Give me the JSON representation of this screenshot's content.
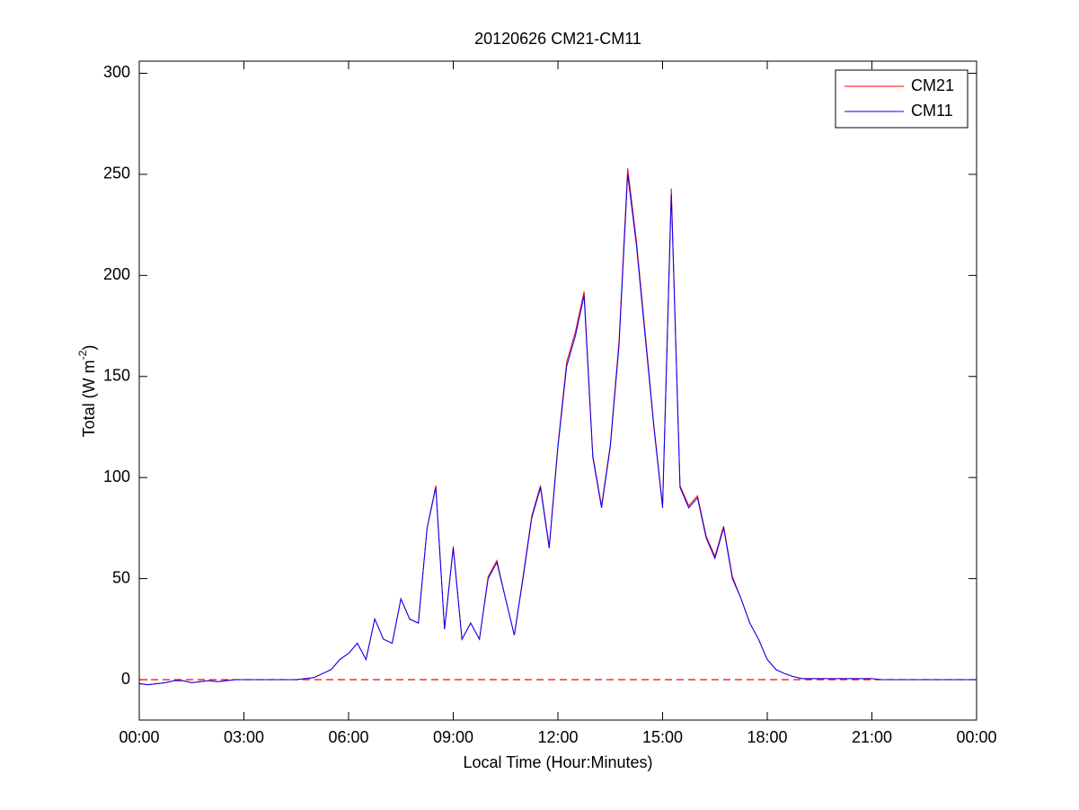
{
  "chart_data": {
    "type": "line",
    "title": "20120626 CM21-CM11",
    "xlabel": "Local Time (Hour:Minutes)",
    "ylabel": {
      "text": "Total (W m",
      "superscript": "-2",
      "suffix": ")"
    },
    "x": [
      0,
      0.25,
      0.5,
      0.75,
      1,
      1.25,
      1.5,
      1.75,
      2,
      2.25,
      2.5,
      2.75,
      3,
      3.25,
      3.5,
      3.75,
      4,
      4.25,
      4.5,
      4.75,
      5,
      5.25,
      5.5,
      5.75,
      6,
      6.25,
      6.5,
      6.75,
      7,
      7.25,
      7.5,
      7.75,
      8,
      8.25,
      8.5,
      8.75,
      9,
      9.25,
      9.5,
      9.75,
      10,
      10.25,
      10.5,
      10.75,
      11,
      11.25,
      11.5,
      11.75,
      12,
      12.25,
      12.5,
      12.75,
      13,
      13.25,
      13.5,
      13.75,
      14,
      14.25,
      14.5,
      14.75,
      15,
      15.25,
      15.5,
      15.75,
      16,
      16.25,
      16.5,
      16.75,
      17,
      17.25,
      17.5,
      17.75,
      18,
      18.25,
      18.5,
      18.75,
      19,
      19.25,
      19.5,
      19.75,
      20,
      20.25,
      20.5,
      20.75,
      21,
      21.25,
      21.5,
      21.75,
      22,
      22.25,
      22.5,
      22.75,
      23,
      23.25,
      23.5,
      23.75,
      24
    ],
    "series": [
      {
        "name": "CM21",
        "color": "#ff0000",
        "values": [
          -2,
          -2.5,
          -2,
          -1.5,
          -0.5,
          -0.5,
          -1.5,
          -1,
          -0.5,
          -1,
          -0.5,
          0,
          0,
          0,
          0,
          0,
          0,
          0,
          0,
          0.5,
          1,
          3,
          5,
          10,
          13,
          18,
          10,
          30,
          20,
          18,
          40,
          30,
          28,
          75,
          96,
          25,
          66,
          20,
          28,
          20,
          51,
          59,
          40,
          22,
          51,
          81,
          96,
          66,
          116,
          157,
          172,
          192,
          111,
          86,
          116,
          167,
          253,
          217,
          172,
          126,
          86,
          243,
          96,
          86,
          91,
          71,
          61,
          76,
          51,
          40,
          28,
          20,
          10,
          5,
          3,
          1.5,
          0.5,
          0.5,
          0.5,
          0.5,
          0.5,
          0.5,
          0.5,
          0.5,
          0.5,
          0,
          0,
          0,
          0,
          0,
          0,
          0,
          0,
          0,
          0,
          0,
          0
        ]
      },
      {
        "name": "CM11",
        "color": "#0000ff",
        "values": [
          -2,
          -2.5,
          -2,
          -1.5,
          -0.5,
          -0.5,
          -1.5,
          -1,
          -0.5,
          -1,
          -0.5,
          0,
          0,
          0,
          0,
          0,
          0,
          0,
          0,
          0.5,
          1,
          3,
          5,
          10,
          13,
          18,
          10,
          30,
          20,
          18,
          40,
          30,
          28,
          75,
          95,
          25,
          65,
          20,
          28,
          20,
          50,
          58,
          40,
          22,
          50,
          80,
          95,
          65,
          115,
          155,
          170,
          190,
          110,
          85,
          115,
          165,
          250,
          215,
          170,
          125,
          85,
          240,
          95,
          85,
          90,
          70,
          60,
          75,
          50,
          40,
          28,
          20,
          10,
          5,
          3,
          1.5,
          0.5,
          0.5,
          0.5,
          0.5,
          0.5,
          0.5,
          0.5,
          0.5,
          0.5,
          0,
          0,
          0,
          0,
          0,
          0,
          0,
          0,
          0,
          0,
          0,
          0
        ]
      }
    ],
    "reference_line": {
      "value": 0,
      "color": "#ff0000",
      "style": "dashed"
    },
    "xlim": [
      0,
      24
    ],
    "xticks": [
      {
        "value": 0,
        "label": "00:00"
      },
      {
        "value": 3,
        "label": "03:00"
      },
      {
        "value": 6,
        "label": "06:00"
      },
      {
        "value": 9,
        "label": "09:00"
      },
      {
        "value": 12,
        "label": "12:00"
      },
      {
        "value": 15,
        "label": "15:00"
      },
      {
        "value": 18,
        "label": "18:00"
      },
      {
        "value": 21,
        "label": "21:00"
      },
      {
        "value": 24,
        "label": "00:00"
      }
    ],
    "ylim": [
      -20,
      306
    ],
    "yticks": [
      0,
      50,
      100,
      150,
      200,
      250,
      300
    ],
    "grid": false,
    "legend": "upper right"
  }
}
